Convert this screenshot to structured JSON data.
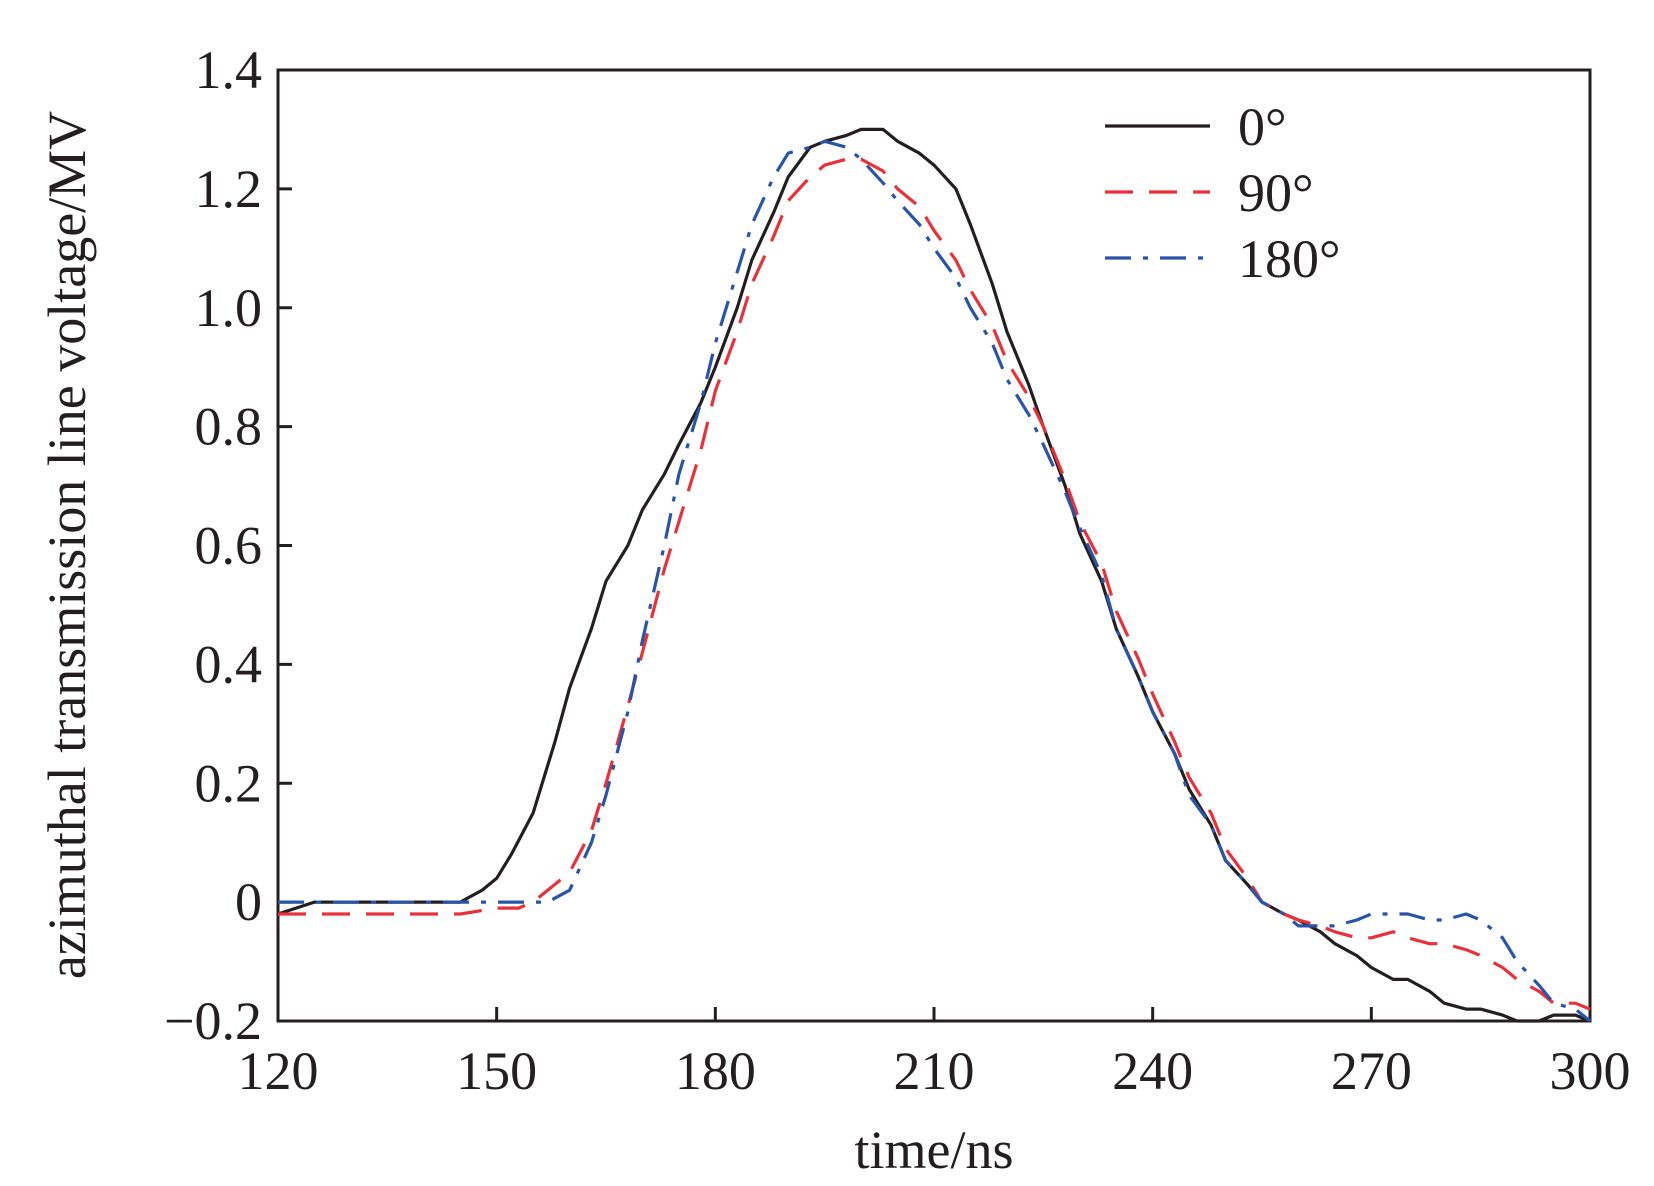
{
  "chart_data": {
    "type": "line",
    "title": "",
    "xlabel": "time/ns",
    "ylabel": "azimuthal transmission line voltage/MV",
    "xlim": [
      120,
      300
    ],
    "ylim": [
      -0.2,
      1.4
    ],
    "xticks": [
      120,
      150,
      180,
      210,
      240,
      270,
      300
    ],
    "xtick_labels": [
      "120",
      "150",
      "180",
      "210",
      "240",
      "270",
      "300"
    ],
    "yticks": [
      -0.2,
      0,
      0.2,
      0.4,
      0.6,
      0.8,
      1.0,
      1.2,
      1.4
    ],
    "ytick_labels": [
      "−0.2",
      "0",
      "0.2",
      "0.4",
      "0.6",
      "0.8",
      "1.0",
      "1.2",
      "1.4"
    ],
    "grid": false,
    "legend_position": "top-right",
    "series": [
      {
        "name": "0°",
        "color": "#231f20",
        "dash": "solid",
        "x": [
          120,
          125,
          130,
          135,
          140,
          145,
          148,
          150,
          152,
          155,
          158,
          160,
          163,
          165,
          168,
          170,
          173,
          175,
          178,
          180,
          183,
          185,
          188,
          190,
          193,
          195,
          198,
          200,
          203,
          205,
          208,
          210,
          213,
          215,
          218,
          220,
          223,
          225,
          228,
          230,
          233,
          235,
          238,
          240,
          243,
          245,
          248,
          250,
          253,
          255,
          258,
          260,
          263,
          265,
          268,
          270,
          273,
          275,
          278,
          280,
          283,
          285,
          288,
          290,
          293,
          295,
          298,
          300
        ],
        "y": [
          -0.02,
          0.0,
          0.0,
          0.0,
          0.0,
          0.0,
          0.02,
          0.04,
          0.08,
          0.15,
          0.27,
          0.36,
          0.46,
          0.54,
          0.6,
          0.66,
          0.72,
          0.77,
          0.84,
          0.9,
          1.0,
          1.08,
          1.16,
          1.22,
          1.27,
          1.28,
          1.29,
          1.3,
          1.3,
          1.28,
          1.26,
          1.24,
          1.2,
          1.14,
          1.04,
          0.96,
          0.87,
          0.8,
          0.7,
          0.62,
          0.54,
          0.46,
          0.38,
          0.32,
          0.25,
          0.19,
          0.13,
          0.07,
          0.03,
          0.0,
          -0.02,
          -0.03,
          -0.05,
          -0.07,
          -0.09,
          -0.11,
          -0.13,
          -0.13,
          -0.15,
          -0.17,
          -0.18,
          -0.18,
          -0.19,
          -0.2,
          -0.2,
          -0.19,
          -0.19,
          -0.2
        ]
      },
      {
        "name": "90°",
        "color": "#e8313a",
        "dash": "long-dash",
        "x": [
          120,
          125,
          130,
          135,
          140,
          145,
          150,
          153,
          155,
          157,
          160,
          163,
          165,
          168,
          170,
          173,
          175,
          178,
          180,
          183,
          185,
          188,
          190,
          193,
          195,
          198,
          200,
          203,
          205,
          208,
          210,
          213,
          215,
          218,
          220,
          223,
          225,
          228,
          230,
          233,
          235,
          238,
          240,
          243,
          245,
          248,
          250,
          253,
          255,
          258,
          260,
          263,
          265,
          268,
          270,
          273,
          275,
          278,
          280,
          283,
          285,
          288,
          290,
          293,
          295,
          298,
          300
        ],
        "y": [
          -0.02,
          -0.02,
          -0.02,
          -0.02,
          -0.02,
          -0.02,
          -0.01,
          -0.01,
          0.0,
          0.02,
          0.05,
          0.12,
          0.2,
          0.33,
          0.42,
          0.56,
          0.64,
          0.76,
          0.86,
          0.96,
          1.04,
          1.12,
          1.18,
          1.22,
          1.24,
          1.25,
          1.25,
          1.23,
          1.2,
          1.17,
          1.13,
          1.08,
          1.03,
          0.97,
          0.91,
          0.85,
          0.8,
          0.71,
          0.64,
          0.57,
          0.49,
          0.41,
          0.35,
          0.27,
          0.21,
          0.15,
          0.09,
          0.04,
          0.0,
          -0.02,
          -0.03,
          -0.04,
          -0.05,
          -0.06,
          -0.06,
          -0.05,
          -0.06,
          -0.07,
          -0.07,
          -0.08,
          -0.09,
          -0.11,
          -0.13,
          -0.15,
          -0.17,
          -0.17,
          -0.18
        ]
      },
      {
        "name": "180°",
        "color": "#2a55a6",
        "dash": "dash-dot",
        "x": [
          120,
          125,
          130,
          135,
          140,
          145,
          150,
          153,
          155,
          157,
          160,
          163,
          165,
          168,
          170,
          173,
          175,
          178,
          180,
          183,
          185,
          188,
          190,
          193,
          195,
          198,
          200,
          203,
          205,
          208,
          210,
          213,
          215,
          218,
          220,
          223,
          225,
          228,
          230,
          233,
          235,
          238,
          240,
          243,
          245,
          248,
          250,
          253,
          255,
          258,
          260,
          263,
          265,
          268,
          270,
          273,
          275,
          278,
          280,
          283,
          285,
          288,
          290,
          293,
          295,
          298,
          300
        ],
        "y": [
          0.0,
          0.0,
          0.0,
          0.0,
          0.0,
          0.0,
          0.0,
          0.0,
          0.0,
          0.0,
          0.02,
          0.1,
          0.18,
          0.32,
          0.44,
          0.6,
          0.72,
          0.84,
          0.94,
          1.06,
          1.14,
          1.22,
          1.26,
          1.27,
          1.28,
          1.27,
          1.25,
          1.21,
          1.18,
          1.14,
          1.1,
          1.05,
          1.0,
          0.94,
          0.88,
          0.82,
          0.77,
          0.69,
          0.63,
          0.55,
          0.46,
          0.38,
          0.32,
          0.25,
          0.18,
          0.13,
          0.07,
          0.03,
          0.0,
          -0.02,
          -0.04,
          -0.04,
          -0.04,
          -0.03,
          -0.02,
          -0.02,
          -0.02,
          -0.03,
          -0.03,
          -0.02,
          -0.03,
          -0.06,
          -0.1,
          -0.14,
          -0.17,
          -0.18,
          -0.2
        ]
      }
    ]
  }
}
